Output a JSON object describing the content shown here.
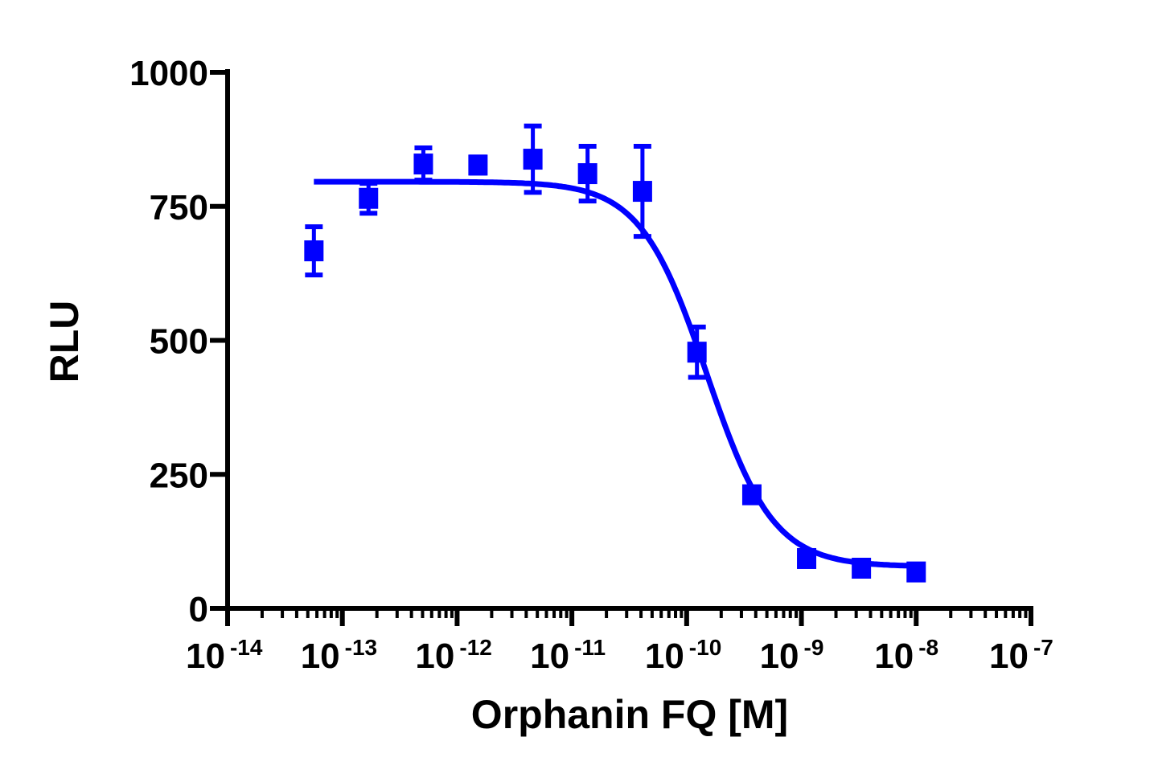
{
  "chart_data": {
    "type": "scatter",
    "title": "",
    "xlabel": "Orphanin FQ [M]",
    "ylabel": "RLU",
    "x_scale": "log",
    "xlim": [
      1e-14,
      1e-07
    ],
    "ylim": [
      0,
      1000
    ],
    "grid": false,
    "legend": "none",
    "color": "#0000ff",
    "y_ticks": [
      0,
      250,
      500,
      750,
      1000
    ],
    "y_tick_labels": [
      "0",
      "250",
      "500",
      "750",
      "1000"
    ],
    "x_ticks": [
      {
        "base": "10",
        "exp": "-14"
      },
      {
        "base": "10",
        "exp": "-13"
      },
      {
        "base": "10",
        "exp": "-12"
      },
      {
        "base": "10",
        "exp": "-11"
      },
      {
        "base": "10",
        "exp": "-10"
      },
      {
        "base": "10",
        "exp": "-9"
      },
      {
        "base": "10",
        "exp": "-8"
      },
      {
        "base": "10",
        "exp": "-7"
      }
    ],
    "points": [
      {
        "x": 5.65e-14,
        "y": 667,
        "err": 45
      },
      {
        "x": 1.69e-13,
        "y": 765,
        "err": 28
      },
      {
        "x": 5.08e-13,
        "y": 829,
        "err": 30
      },
      {
        "x": 1.52e-12,
        "y": 827,
        "err": 15
      },
      {
        "x": 4.57e-12,
        "y": 838,
        "err": 62
      },
      {
        "x": 1.37e-11,
        "y": 811,
        "err": 51
      },
      {
        "x": 4.12e-11,
        "y": 778,
        "err": 84
      },
      {
        "x": 1.23e-10,
        "y": 478,
        "err": 47
      },
      {
        "x": 3.7e-10,
        "y": 212,
        "err": 12
      },
      {
        "x": 1.11e-09,
        "y": 93,
        "err": 8
      },
      {
        "x": 3.33e-09,
        "y": 75,
        "err": 6
      },
      {
        "x": 1e-08,
        "y": 68,
        "err": 6
      }
    ],
    "fit": {
      "model": "four-parameter logistic",
      "top": 796,
      "bottom": 78,
      "ic50": 1.5e-10,
      "hill": -1.5
    }
  }
}
